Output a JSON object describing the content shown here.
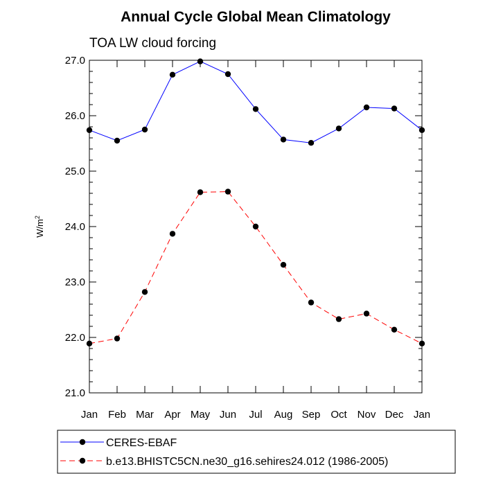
{
  "chart_data": {
    "type": "line",
    "title": "Annual Cycle Global Mean Climatology",
    "subtitle": "TOA LW cloud forcing",
    "ylabel": "W/m",
    "ylabel_sup": "2",
    "xlabel": "",
    "categories": [
      "Jan",
      "Feb",
      "Mar",
      "Apr",
      "May",
      "Jun",
      "Jul",
      "Aug",
      "Sep",
      "Oct",
      "Nov",
      "Dec",
      "Jan"
    ],
    "ylim": [
      21.0,
      27.0
    ],
    "yticks": [
      "21.0",
      "22.0",
      "23.0",
      "24.0",
      "25.0",
      "26.0",
      "27.0"
    ],
    "grid": false,
    "legend_position": "bottom",
    "series": [
      {
        "name": "CERES-EBAF",
        "color": "#0000ff",
        "dash": "solid",
        "values": [
          25.74,
          25.55,
          25.75,
          26.74,
          26.98,
          26.75,
          26.12,
          25.57,
          25.51,
          25.77,
          26.15,
          26.13,
          25.74
        ]
      },
      {
        "name": "b.e13.BHISTC5CN.ne30_g16.sehires24.012 (1986-2005)",
        "color": "#ff0000",
        "dash": "dashed",
        "values": [
          21.89,
          21.98,
          22.82,
          23.87,
          24.62,
          24.63,
          24.0,
          23.31,
          22.63,
          22.33,
          22.43,
          22.14,
          21.89
        ]
      }
    ]
  }
}
